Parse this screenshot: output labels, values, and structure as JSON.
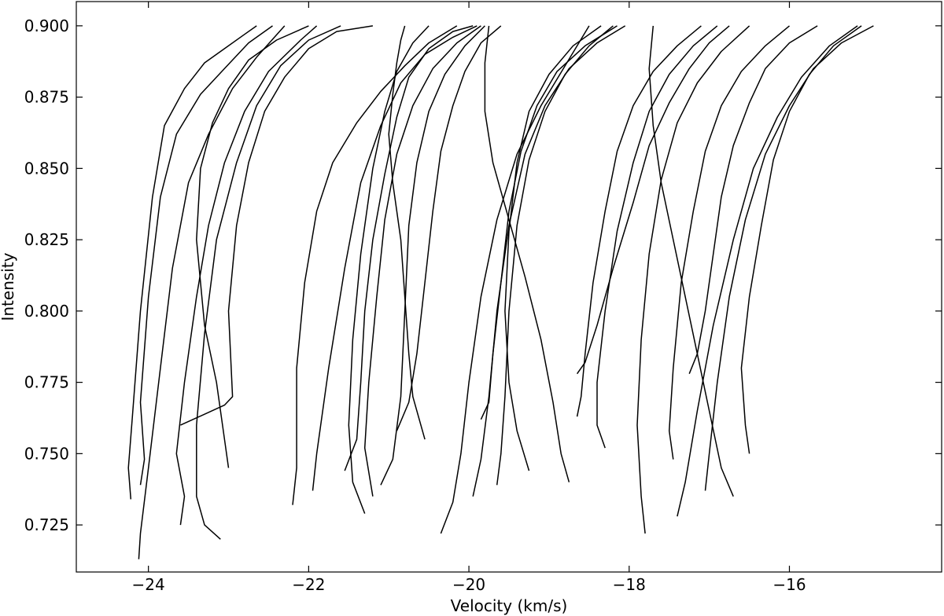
{
  "chart_data": {
    "type": "line",
    "title": "",
    "xlabel": "Velocity (km/s)",
    "ylabel": "Intensity",
    "xlim": [
      -24.9,
      -14.1
    ],
    "ylim": [
      0.7085,
      0.9085
    ],
    "xticks": [
      -24,
      -22,
      -20,
      -18,
      -16
    ],
    "yticks": [
      0.725,
      0.75,
      0.775,
      0.8,
      0.825,
      0.85,
      0.875,
      0.9
    ],
    "xtick_labels": [
      "−24",
      "−22",
      "−20",
      "−18",
      "−16"
    ],
    "ytick_labels": [
      "0.725",
      "0.750",
      "0.775",
      "0.800",
      "0.825",
      "0.850",
      "0.875",
      "0.900"
    ],
    "grid": false,
    "legend": "none",
    "line_color": "#000000",
    "series": [
      {
        "x": [
          -24.22,
          -24.25,
          -24.2,
          -24.1,
          -23.95,
          -23.8,
          -23.55,
          -23.3,
          -23.05,
          -22.8,
          -22.65
        ],
        "y": [
          0.734,
          0.745,
          0.763,
          0.8,
          0.84,
          0.865,
          0.878,
          0.887,
          0.892,
          0.897,
          0.9
        ]
      },
      {
        "x": [
          -24.1,
          -24.05,
          -24.1,
          -24.0,
          -23.85,
          -23.65,
          -23.35,
          -23.05,
          -22.75,
          -22.45
        ],
        "y": [
          0.739,
          0.748,
          0.768,
          0.805,
          0.84,
          0.862,
          0.876,
          0.885,
          0.894,
          0.9
        ]
      },
      {
        "x": [
          -24.12,
          -24.1,
          -24.0,
          -23.85,
          -23.7,
          -23.5,
          -23.25,
          -22.95,
          -22.65,
          -22.3
        ],
        "y": [
          0.713,
          0.722,
          0.745,
          0.78,
          0.815,
          0.845,
          0.862,
          0.878,
          0.889,
          0.9
        ]
      },
      {
        "x": [
          -23.6,
          -23.55,
          -23.65,
          -23.55,
          -23.4,
          -23.25,
          -23.05,
          -22.8,
          -22.5,
          -22.1,
          -21.9
        ],
        "y": [
          0.725,
          0.735,
          0.75,
          0.775,
          0.805,
          0.83,
          0.852,
          0.87,
          0.884,
          0.895,
          0.9
        ]
      },
      {
        "x": [
          -23.1,
          -23.3,
          -23.4,
          -23.4,
          -23.3,
          -23.15,
          -22.9,
          -22.65,
          -22.35,
          -22.0,
          -21.6
        ],
        "y": [
          0.72,
          0.725,
          0.735,
          0.76,
          0.792,
          0.825,
          0.852,
          0.872,
          0.886,
          0.895,
          0.9
        ]
      },
      {
        "x": [
          -23.6,
          -23.05,
          -22.95,
          -23.0,
          -22.9,
          -22.75,
          -22.55,
          -22.3,
          -22.0,
          -21.65,
          -21.2
        ],
        "y": [
          0.76,
          0.767,
          0.77,
          0.8,
          0.83,
          0.852,
          0.87,
          0.882,
          0.892,
          0.898,
          0.9
        ]
      },
      {
        "x": [
          -23.0,
          -23.05,
          -23.15,
          -23.3,
          -23.4,
          -23.35,
          -23.2,
          -23.0,
          -22.75,
          -22.4,
          -22.0
        ],
        "y": [
          0.745,
          0.755,
          0.775,
          0.795,
          0.825,
          0.85,
          0.866,
          0.878,
          0.888,
          0.895,
          0.9
        ]
      },
      {
        "x": [
          -22.2,
          -22.15,
          -22.15,
          -22.05,
          -21.9,
          -21.7,
          -21.4,
          -21.1,
          -20.8,
          -20.5,
          -20.15
        ],
        "y": [
          0.732,
          0.745,
          0.78,
          0.81,
          0.835,
          0.852,
          0.866,
          0.877,
          0.886,
          0.894,
          0.9
        ]
      },
      {
        "x": [
          -21.95,
          -21.9,
          -21.75,
          -21.55,
          -21.35,
          -21.1,
          -20.85,
          -20.55,
          -20.2,
          -19.9
        ],
        "y": [
          0.737,
          0.75,
          0.78,
          0.815,
          0.845,
          0.865,
          0.88,
          0.89,
          0.896,
          0.9
        ]
      },
      {
        "x": [
          -21.3,
          -21.45,
          -21.5,
          -21.45,
          -21.35,
          -21.2,
          -21.05,
          -20.9,
          -20.7,
          -20.5
        ],
        "y": [
          0.729,
          0.74,
          0.76,
          0.79,
          0.82,
          0.85,
          0.87,
          0.884,
          0.894,
          0.9
        ]
      },
      {
        "x": [
          -21.55,
          -21.4,
          -21.35,
          -21.3,
          -21.2,
          -21.05,
          -20.9,
          -20.75,
          -20.5,
          -20.2,
          -19.95
        ],
        "y": [
          0.744,
          0.755,
          0.775,
          0.8,
          0.825,
          0.848,
          0.868,
          0.882,
          0.892,
          0.898,
          0.9
        ]
      },
      {
        "x": [
          -21.2,
          -21.3,
          -21.25,
          -21.15,
          -21.05,
          -20.9,
          -20.7,
          -20.45,
          -20.15,
          -19.85
        ],
        "y": [
          0.735,
          0.752,
          0.775,
          0.805,
          0.832,
          0.855,
          0.872,
          0.885,
          0.894,
          0.9
        ]
      },
      {
        "x": [
          -20.55,
          -20.7,
          -20.75,
          -20.8,
          -20.85,
          -20.95,
          -21.0,
          -20.95,
          -20.9,
          -20.85,
          -20.8
        ],
        "y": [
          0.755,
          0.77,
          0.785,
          0.805,
          0.825,
          0.845,
          0.862,
          0.876,
          0.887,
          0.895,
          0.9
        ]
      },
      {
        "x": [
          -21.1,
          -20.95,
          -20.85,
          -20.8,
          -20.75,
          -20.65,
          -20.5,
          -20.3,
          -20.05,
          -19.8
        ],
        "y": [
          0.739,
          0.748,
          0.77,
          0.8,
          0.83,
          0.852,
          0.87,
          0.883,
          0.893,
          0.9
        ]
      },
      {
        "x": [
          -20.9,
          -20.75,
          -20.65,
          -20.55,
          -20.45,
          -20.35,
          -20.2,
          -20.05,
          -19.85,
          -19.6
        ],
        "y": [
          0.758,
          0.768,
          0.785,
          0.81,
          0.835,
          0.856,
          0.872,
          0.884,
          0.894,
          0.9
        ]
      },
      {
        "x": [
          -20.35,
          -20.2,
          -20.1,
          -20.0,
          -19.85,
          -19.65,
          -19.4,
          -19.1,
          -18.8,
          -18.5
        ],
        "y": [
          0.722,
          0.733,
          0.75,
          0.775,
          0.805,
          0.832,
          0.855,
          0.872,
          0.886,
          0.9
        ]
      },
      {
        "x": [
          -19.95,
          -19.85,
          -19.75,
          -19.65,
          -19.5,
          -19.3,
          -19.05,
          -18.75,
          -18.4,
          -18.05
        ],
        "y": [
          0.735,
          0.748,
          0.77,
          0.8,
          0.83,
          0.855,
          0.872,
          0.885,
          0.894,
          0.9
        ]
      },
      {
        "x": [
          -19.65,
          -19.6,
          -19.55,
          -19.5,
          -19.4,
          -19.25,
          -19.05,
          -18.8,
          -18.5,
          -18.2
        ],
        "y": [
          0.739,
          0.75,
          0.77,
          0.8,
          0.83,
          0.853,
          0.87,
          0.883,
          0.893,
          0.9
        ]
      },
      {
        "x": [
          -19.25,
          -19.4,
          -19.5,
          -19.55,
          -19.5,
          -19.4,
          -19.25,
          -19.0,
          -18.7,
          -18.35
        ],
        "y": [
          0.744,
          0.758,
          0.775,
          0.8,
          0.828,
          0.852,
          0.87,
          0.883,
          0.893,
          0.9
        ]
      },
      {
        "x": [
          -18.75,
          -18.85,
          -18.95,
          -19.1,
          -19.3,
          -19.5,
          -19.7,
          -19.8,
          -19.8,
          -19.75
        ],
        "y": [
          0.74,
          0.75,
          0.768,
          0.79,
          0.812,
          0.832,
          0.852,
          0.87,
          0.887,
          0.9
        ]
      },
      {
        "x": [
          -19.85,
          -19.75,
          -19.7,
          -19.6,
          -19.5,
          -19.35,
          -19.15,
          -18.9,
          -18.55,
          -18.15
        ],
        "y": [
          0.762,
          0.768,
          0.785,
          0.81,
          0.835,
          0.856,
          0.872,
          0.884,
          0.893,
          0.9
        ]
      },
      {
        "x": [
          -18.65,
          -18.6,
          -18.55,
          -18.45,
          -18.3,
          -18.15,
          -17.95,
          -17.7,
          -17.4,
          -17.1
        ],
        "y": [
          0.763,
          0.77,
          0.785,
          0.81,
          0.835,
          0.856,
          0.872,
          0.884,
          0.893,
          0.9
        ]
      },
      {
        "x": [
          -18.3,
          -18.4,
          -18.4,
          -18.3,
          -18.15,
          -17.95,
          -17.75,
          -17.5,
          -17.2,
          -16.9
        ],
        "y": [
          0.752,
          0.76,
          0.775,
          0.8,
          0.828,
          0.852,
          0.87,
          0.883,
          0.893,
          0.9
        ]
      },
      {
        "x": [
          -18.65,
          -18.55,
          -18.4,
          -18.2,
          -17.95,
          -17.75,
          -17.5,
          -17.25,
          -17.0,
          -16.75
        ],
        "y": [
          0.778,
          0.782,
          0.795,
          0.815,
          0.838,
          0.858,
          0.873,
          0.885,
          0.894,
          0.9
        ]
      },
      {
        "x": [
          -17.8,
          -17.85,
          -17.9,
          -17.85,
          -17.75,
          -17.6,
          -17.4,
          -17.15,
          -16.85,
          -16.5
        ],
        "y": [
          0.722,
          0.735,
          0.76,
          0.79,
          0.82,
          0.846,
          0.866,
          0.88,
          0.891,
          0.9
        ]
      },
      {
        "x": [
          -17.45,
          -17.5,
          -17.45,
          -17.35,
          -17.2,
          -17.05,
          -16.85,
          -16.6,
          -16.3,
          -16.0
        ],
        "y": [
          0.748,
          0.758,
          0.78,
          0.81,
          0.835,
          0.856,
          0.872,
          0.884,
          0.893,
          0.9
        ]
      },
      {
        "x": [
          -16.7,
          -16.85,
          -17.0,
          -17.15,
          -17.3,
          -17.45,
          -17.6,
          -17.7,
          -17.75,
          -17.7
        ],
        "y": [
          0.735,
          0.745,
          0.765,
          0.785,
          0.805,
          0.825,
          0.845,
          0.865,
          0.885,
          0.9
        ]
      },
      {
        "x": [
          -17.25,
          -17.15,
          -17.05,
          -16.95,
          -16.85,
          -16.7,
          -16.5,
          -16.3,
          -16.0,
          -15.65
        ],
        "y": [
          0.778,
          0.785,
          0.8,
          0.82,
          0.84,
          0.858,
          0.873,
          0.885,
          0.894,
          0.9
        ]
      },
      {
        "x": [
          -16.5,
          -16.55,
          -16.6,
          -16.5,
          -16.35,
          -16.2,
          -16.0,
          -15.75,
          -15.45,
          -15.1
        ],
        "y": [
          0.75,
          0.76,
          0.78,
          0.805,
          0.83,
          0.853,
          0.87,
          0.883,
          0.893,
          0.9
        ]
      },
      {
        "x": [
          -17.05,
          -17.0,
          -16.9,
          -16.75,
          -16.55,
          -16.3,
          -16.0,
          -15.7,
          -15.35,
          -14.95
        ],
        "y": [
          0.737,
          0.75,
          0.775,
          0.805,
          0.832,
          0.855,
          0.872,
          0.885,
          0.894,
          0.9
        ]
      },
      {
        "x": [
          -17.4,
          -17.3,
          -17.15,
          -16.95,
          -16.7,
          -16.45,
          -16.15,
          -15.85,
          -15.5,
          -15.15
        ],
        "y": [
          0.728,
          0.74,
          0.765,
          0.795,
          0.825,
          0.85,
          0.868,
          0.882,
          0.893,
          0.9
        ]
      }
    ]
  }
}
